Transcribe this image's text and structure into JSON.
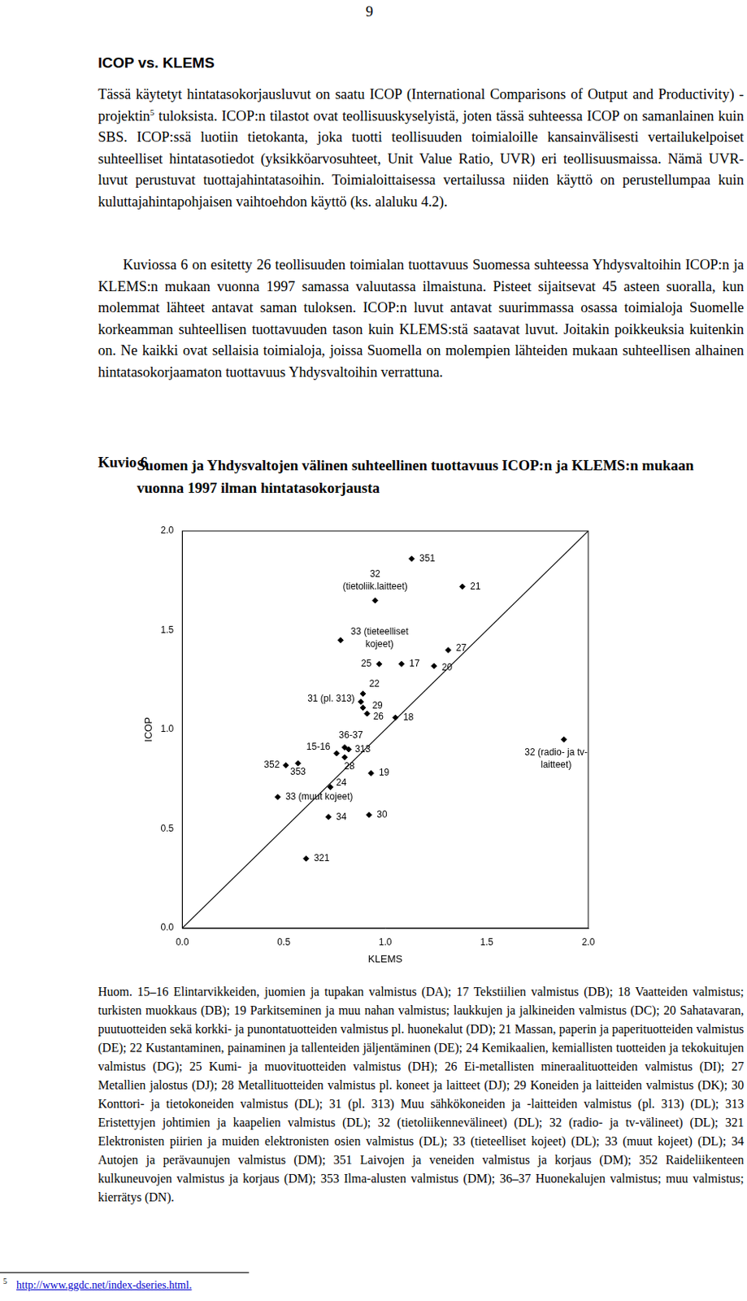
{
  "page_number": "9",
  "heading": "ICOP vs. KLEMS",
  "paragraphs": [
    [
      {
        "text": "Tässä käytetyt hintatasokorjausluvut on saatu ICOP (International Comparisons of Output and Productivity) -projektin"
      },
      {
        "sup": "5"
      },
      {
        "text": " tuloksista. ICOP:n tilastot ovat teollisuuskyselyistä, joten tässä suhteessa ICOP on samanlainen kuin SBS. ICOP:ssä luotiin tietokanta, joka tuotti teollisuuden toimialoille kansainvälisesti vertailukelpoiset suhteelliset hintatasotiedot (yksikköarvosuhteet, Unit Value Ratio, UVR) eri teollisuusmaissa. Nämä UVR-luvut perustuvat tuottajahintatasoihin. Toimialoittaisessa vertailussa niiden käyttö on perustellumpaa kuin kuluttajahintapohjaisen vaihtoehdon käyttö (ks. alaluku 4.2)."
      }
    ],
    [
      {
        "text": "Kuviossa 6 on esitetty 26 teollisuuden toimialan tuottavuus Suomessa suhteessa Yhdysvaltoihin ICOP:n ja KLEMS:n mukaan vuonna 1997 samassa valuutassa ilmaistuna. Pisteet sijaitsevat 45 asteen suoralla, kun molemmat lähteet antavat saman tuloksen. ICOP:n luvut antavat suurimmassa osassa toimialoja Suomelle korkeamman suhteellisen tuottavuuden tason kuin KLEMS:stä saatavat luvut. Joitakin poikkeuksia kuitenkin on. Ne kaikki ovat sellaisia toimialoja, joissa Suomella on molempien lähteiden mukaan suhteellisen alhainen hintatasokorjaamaton tuottavuus Yhdysvaltoihin verrattuna."
      }
    ]
  ],
  "figure": {
    "label": "Kuvio 6",
    "title": "Suomen ja Yhdysvaltojen välinen suhteellinen tuottavuus ICOP:n ja KLEMS:n mukaan vuonna 1997 ilman hintatasokorjausta"
  },
  "chart_data": {
    "type": "scatter",
    "x_label": "KLEMS",
    "y_label": "ICOP",
    "point_labels": [
      "351",
      "21",
      "32\n(tietoliik.laitteet)",
      "33 (tieteelliset\nkojeet)",
      "27",
      "25",
      "17",
      "20",
      "22",
      "31 (pl. 313)",
      "29",
      "26",
      "18",
      "36-37",
      "313",
      "15-16",
      "28",
      "352",
      "353",
      "19",
      "24",
      "33 (muut kojeet)",
      "34",
      "30",
      "321",
      "32 (radio- ja tv-\nlaitteet)"
    ],
    "x": [
      1.13,
      1.38,
      0.95,
      0.78,
      1.31,
      0.97,
      1.08,
      1.24,
      0.89,
      0.88,
      0.89,
      0.91,
      1.05,
      0.8,
      0.82,
      0.76,
      0.8,
      0.51,
      0.57,
      0.93,
      0.73,
      0.47,
      0.72,
      0.92,
      0.61,
      1.88
    ],
    "values": [
      1.86,
      1.72,
      1.65,
      1.45,
      1.4,
      1.33,
      1.33,
      1.32,
      1.18,
      1.14,
      1.11,
      1.08,
      1.06,
      0.91,
      0.9,
      0.88,
      0.86,
      0.82,
      0.83,
      0.78,
      0.71,
      0.66,
      0.56,
      0.57,
      0.35,
      0.95
    ],
    "reference_line": {
      "x": [
        0,
        2
      ],
      "y": [
        0,
        2
      ]
    },
    "color": "#000000",
    "marker": "diamond",
    "grid": false,
    "xlim": [
      0,
      2
    ],
    "ylim": [
      0,
      2
    ],
    "xticks": [
      {
        "value": 0,
        "label": "0.0"
      },
      {
        "value": 0.5,
        "label": "0.5"
      },
      {
        "value": 1,
        "label": "1.0"
      },
      {
        "value": 1.5,
        "label": "1.5"
      },
      {
        "value": 2,
        "label": "2.0"
      }
    ],
    "yticks": [
      {
        "value": 0,
        "label": "0.0"
      },
      {
        "value": 0.5,
        "label": "0.5"
      },
      {
        "value": 1,
        "label": "1.0"
      },
      {
        "value": 1.5,
        "label": "1.5"
      },
      {
        "value": 2,
        "label": "2.0"
      }
    ]
  },
  "note": "Huom. 15–16 Elintarvikkeiden, juomien ja tupakan valmistus (DA); 17 Tekstiilien valmistus (DB); 18 Vaatteiden valmistus; turkisten muokkaus (DB); 19 Parkitseminen ja muu nahan valmistus; laukkujen ja jalkineiden valmistus (DC); 20 Sahatavaran, puutuotteiden sekä korkki- ja punontatuotteiden valmistus pl. huonekalut (DD); 21 Massan, paperin ja paperituotteiden valmistus (DE); 22 Kustantaminen, painaminen ja tallenteiden jäljentäminen (DE); 24 Kemikaalien, kemiallisten tuotteiden ja tekokuitujen valmistus (DG); 25 Kumi- ja muovituotteiden valmistus (DH); 26 Ei-metallisten mineraalituotteiden valmistus (DI); 27 Metallien jalostus (DJ); 28 Metallituotteiden valmistus pl. koneet ja laitteet (DJ); 29 Koneiden ja laitteiden valmistus (DK); 30 Konttori- ja tietokoneiden valmistus (DL); 31 (pl. 313) Muu sähkökoneiden ja -laitteiden valmistus (pl. 313) (DL); 313 Eristettyjen johtimien ja kaapelien valmistus (DL); 32 (tietoliikennevälineet) (DL); 32 (radio- ja tv-välineet) (DL); 321 Elektronisten piirien ja muiden elektronisten osien valmistus (DL); 33 (tieteelliset kojeet) (DL); 33 (muut kojeet) (DL); 34 Autojen ja perävaunujen valmistus (DM); 351 Laivojen ja veneiden valmistus ja korjaus (DM); 352 Raideliikenteen kulkuneuvojen valmistus ja korjaus (DM); 353 Ilma-alusten valmistus (DM); 36–37 Huonekalujen valmistus; muu valmistus; kierrätys (DN).",
  "footnote": {
    "marker": "5",
    "text": "http://www.ggdc.net/index-dseries.html."
  }
}
